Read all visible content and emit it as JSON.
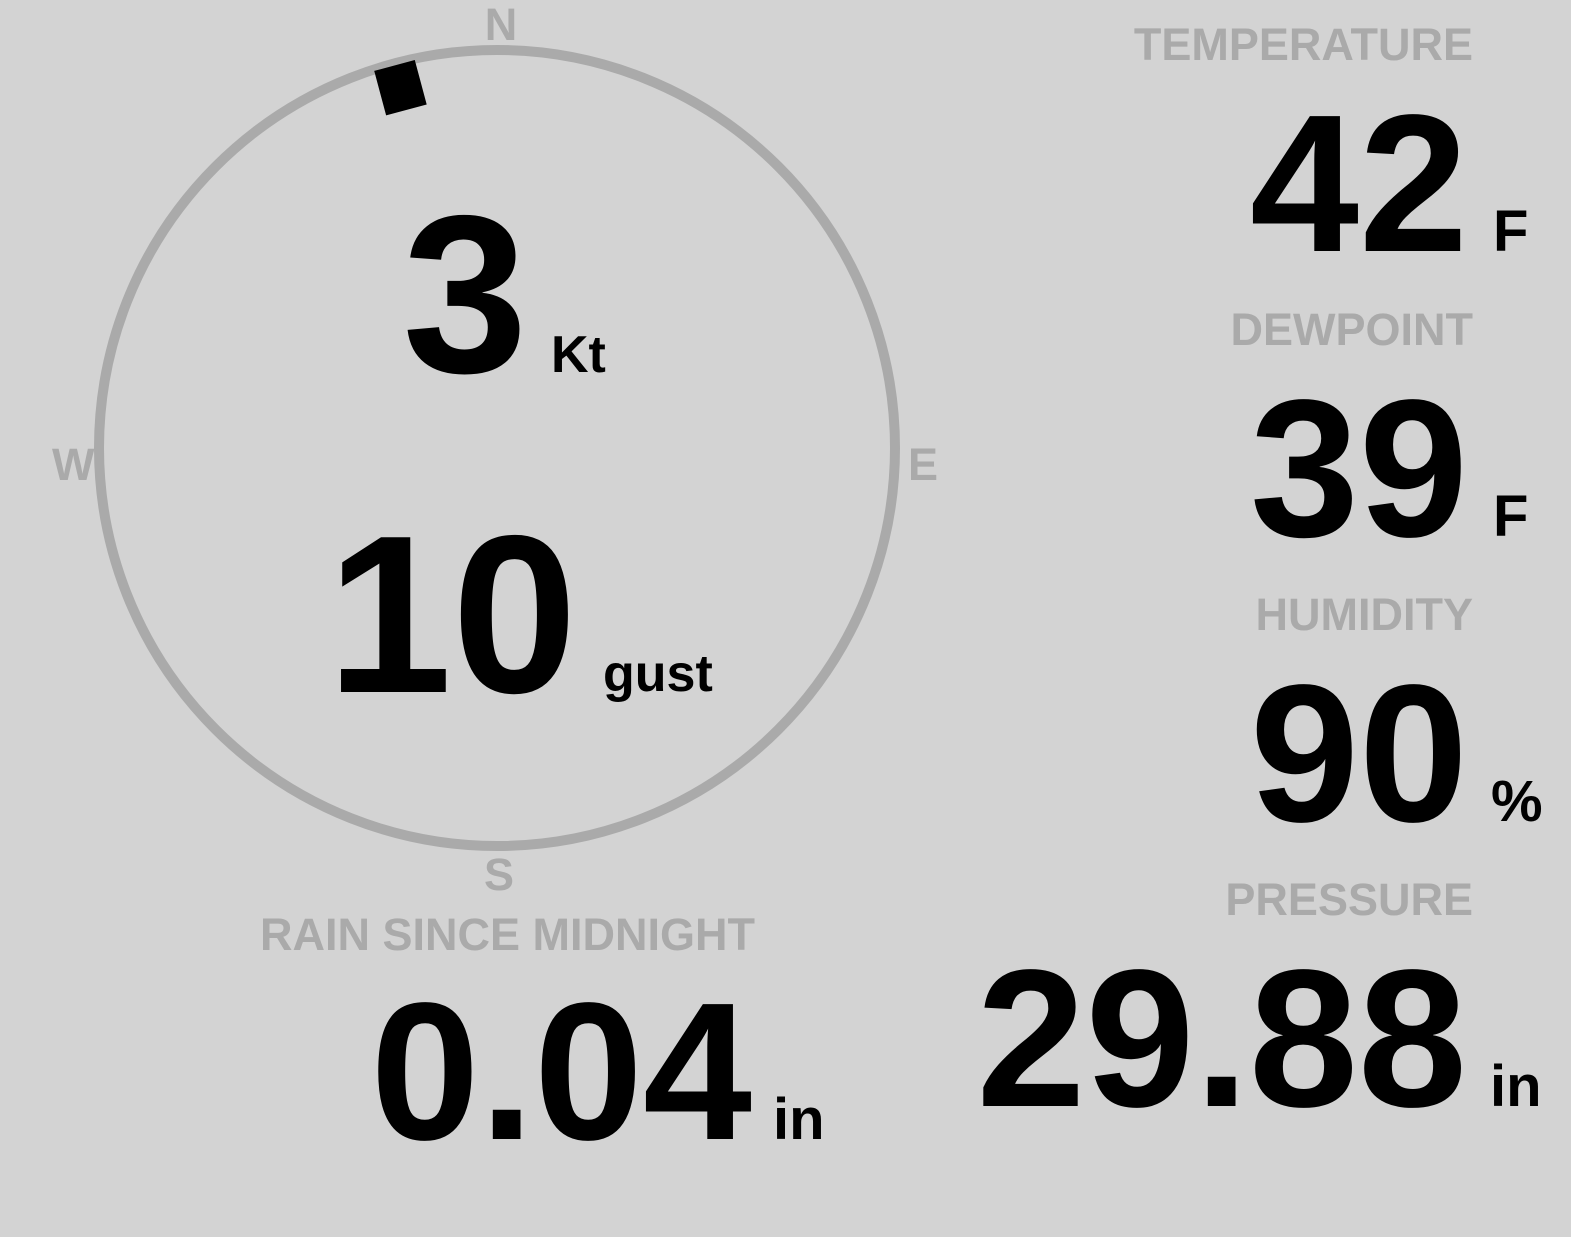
{
  "colors": {
    "background": "#d3d3d3",
    "label": "#aaaaaa",
    "value": "#000000",
    "ring": "#aaaaaa"
  },
  "wind": {
    "compass": {
      "north": "N",
      "south": "S",
      "east": "E",
      "west": "W"
    },
    "direction_deg": 345,
    "speed": "3",
    "speed_unit": "Kt",
    "gust": "10",
    "gust_unit": "gust"
  },
  "temperature": {
    "label": "TEMPERATURE",
    "value": "42",
    "unit": "F"
  },
  "dewpoint": {
    "label": "DEWPOINT",
    "value": "39",
    "unit": "F"
  },
  "humidity": {
    "label": "HUMIDITY",
    "value": "90",
    "unit": "%"
  },
  "rain": {
    "label": "RAIN SINCE MIDNIGHT",
    "value": "0.04",
    "unit": "in"
  },
  "pressure": {
    "label": "PRESSURE",
    "value": "29.88",
    "unit": "in"
  }
}
